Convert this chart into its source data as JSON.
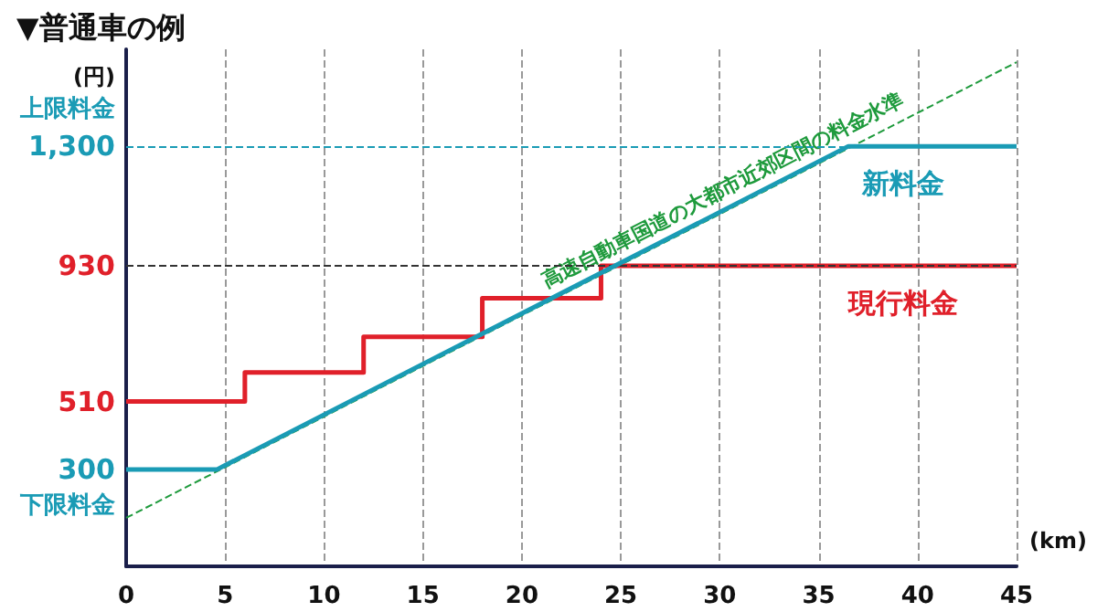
{
  "chart_data": {
    "type": "line",
    "title": "▼普通車の例",
    "xlabel": "(km)",
    "ylabel": "(円)",
    "xlim": [
      0,
      45
    ],
    "xticks": [
      0,
      5,
      10,
      15,
      20,
      25,
      30,
      35,
      40,
      45
    ],
    "ylim": [
      0,
      1600
    ],
    "yticks": [
      {
        "value": 300,
        "label": "300"
      },
      {
        "value": 510,
        "label": "510"
      },
      {
        "value": 930,
        "label": "930"
      },
      {
        "value": 1300,
        "label": "1,300"
      }
    ],
    "grid": "x",
    "legend": false,
    "marker": "none",
    "series": [
      {
        "name": "高速自動車国道の大都市近郊区間の料金水準",
        "color": "#1e9a3c",
        "line_style": "dashed",
        "x": [
          0,
          45
        ],
        "values": [
          150,
          1560
        ]
      },
      {
        "name": "現行料金",
        "type": "step",
        "color": "#e0202a",
        "x": [
          0,
          6,
          12,
          18,
          24,
          45
        ],
        "values": [
          510,
          600,
          710,
          830,
          930,
          930
        ]
      },
      {
        "name": "新料金",
        "color": "#1a9bb5",
        "x": [
          0,
          4.6,
          36.5,
          45
        ],
        "values": [
          300,
          300,
          1300,
          1300
        ]
      }
    ],
    "ref_lines": [
      {
        "axis": "y",
        "value": 1300,
        "color": "#1a9bb5",
        "line_style": "dashed"
      },
      {
        "axis": "y",
        "value": 930,
        "color": "#333333",
        "line_style": "dashed"
      }
    ],
    "annotations": [
      {
        "text": "上限料金",
        "x": 0,
        "y": 1300
      },
      {
        "text": "下限料金",
        "x": 0,
        "y": 300
      }
    ]
  }
}
